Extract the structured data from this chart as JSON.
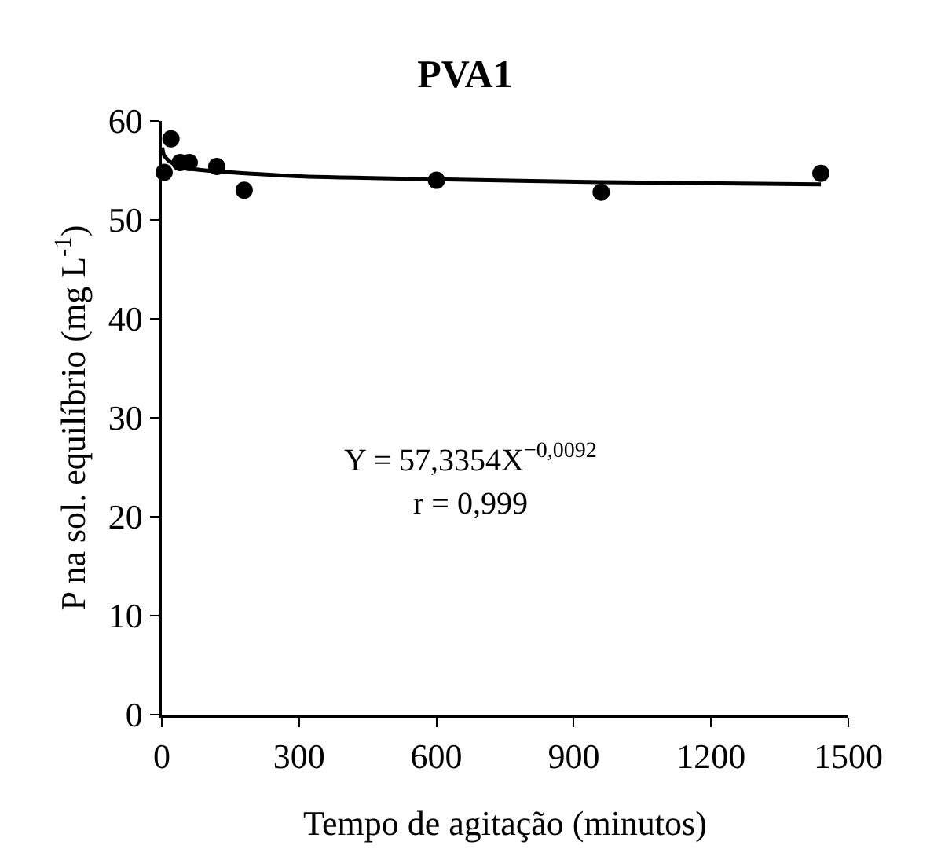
{
  "chart_data": {
    "type": "scatter",
    "title": "PVA1",
    "xlabel": "Tempo de agitação (minutos)",
    "ylabel": "P na sol. equilíbrio (mg L$^{-1}$)",
    "x": [
      5,
      20,
      40,
      60,
      120,
      180,
      600,
      960,
      1440
    ],
    "series": [
      {
        "color": "#000000",
        "marker": "circle",
        "values": [
          54.8,
          58.2,
          55.8,
          55.8,
          55.4,
          53,
          54,
          52.8,
          54.7
        ]
      },
      {
        "type": "line",
        "color": "#000000",
        "marker": "none",
        "line_style": "solid",
        "x": [
          1,
          5,
          20,
          60,
          120,
          300,
          600,
          960,
          1440
        ],
        "values": [
          57.3,
          56.5,
          55.8,
          55.2,
          54.9,
          54.4,
          54.1,
          53.8,
          53.6
        ]
      }
    ],
    "xlim": [
      0,
      1500
    ],
    "xticks": [
      0,
      300,
      600,
      900,
      1200,
      1500
    ],
    "ylim": [
      0,
      60
    ],
    "yticks": [
      0,
      10,
      20,
      30,
      40,
      50,
      60
    ],
    "grid": false,
    "annotations": [
      "Y = 57,3354X$^{−0,0092}$",
      "r = 0,999"
    ]
  }
}
